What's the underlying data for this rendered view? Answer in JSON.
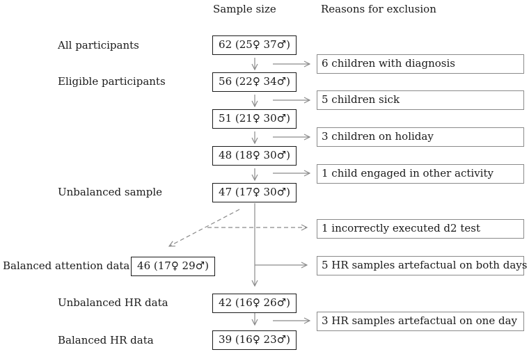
{
  "headers": {
    "sample_size": "Sample size",
    "reasons": "Reasons for exclusion"
  },
  "stage_labels": {
    "all": "All participants",
    "eligible": "Eligible participants",
    "unbalanced": "Unbalanced sample",
    "balanced_attention": "Balanced attention data",
    "unbalanced_hr": "Unbalanced HR data",
    "balanced_hr": "Balanced HR data"
  },
  "counts": {
    "all": "62 (25♀ 37♂)",
    "eligible": "56 (22♀ 34♂)",
    "after_sick": "51 (21♀ 30♂)",
    "after_holiday": "48 (18♀ 30♂)",
    "unbalanced": "47 (17♀ 30♂)",
    "balanced_attention": "46 (17♀ 29♂)",
    "unbalanced_hr": "42 (16♀ 26♂)",
    "balanced_hr": "39 (16♀ 23♂)"
  },
  "exclusions": {
    "diagnosis": "6 children with diagnosis",
    "sick": "5 children sick",
    "holiday": "3 children on holiday",
    "activity": "1 child engaged in other activity",
    "d2": "1 incorrectly executed d2 test",
    "hr_both": "5 HR samples artefactual on both days",
    "hr_one": "3 HR samples artefactual on one day"
  },
  "colors": {
    "box_border": "#1a1a1a",
    "reason_border": "#8a8a8a",
    "arrow": "#8a8a8a"
  }
}
